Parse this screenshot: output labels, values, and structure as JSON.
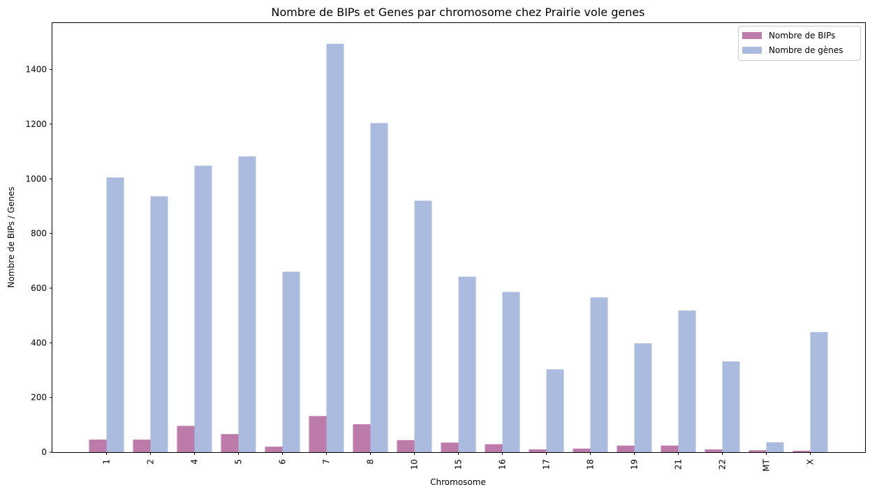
{
  "chart_data": {
    "type": "bar",
    "title": "Nombre de BIPs et Genes par chromosome chez Prairie vole genes",
    "xlabel": "Chromosome",
    "ylabel": "Nombre de BIPs / Genes",
    "ylim": [
      0,
      1570
    ],
    "yticks": [
      0,
      200,
      400,
      600,
      800,
      1000,
      1200,
      1400
    ],
    "categories": [
      "1",
      "2",
      "4",
      "5",
      "6",
      "7",
      "8",
      "10",
      "15",
      "16",
      "17",
      "18",
      "19",
      "21",
      "22",
      "MT",
      "X"
    ],
    "series": [
      {
        "name": "Nombre de BIPs",
        "color": "#bc7ba8",
        "values": [
          46,
          46,
          96,
          66,
          20,
          132,
          102,
          44,
          35,
          29,
          10,
          13,
          24,
          24,
          10,
          7,
          5
        ]
      },
      {
        "name": "Nombre de gènes",
        "color": "#aabbdf",
        "values": [
          1005,
          936,
          1048,
          1082,
          660,
          1494,
          1204,
          920,
          642,
          586,
          303,
          566,
          398,
          518,
          332,
          36,
          439
        ]
      }
    ],
    "legend_position": "top-right",
    "grid": false
  }
}
